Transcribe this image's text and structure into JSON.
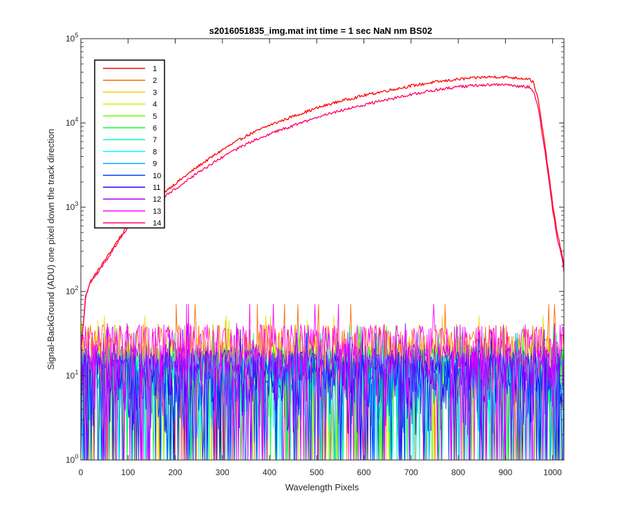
{
  "chart_data": {
    "type": "line",
    "title": "s2016051835_img.mat int time = 1 sec  NaN nm BS02",
    "xlabel": "Wavelength Pixels",
    "ylabel": "Signal-BackGround (ADU) one pixel down the track direction",
    "xlim": [
      0,
      1024
    ],
    "ylim": [
      1,
      100000
    ],
    "yscale": "log",
    "grid": false,
    "legend_position": "top-left",
    "x_ticks": [
      0,
      100,
      200,
      300,
      400,
      500,
      600,
      700,
      800,
      900,
      1000
    ],
    "y_ticks": [
      {
        "value": 1,
        "base": "10",
        "exp": "0"
      },
      {
        "value": 10,
        "base": "10",
        "exp": "1"
      },
      {
        "value": 100,
        "base": "10",
        "exp": "2"
      },
      {
        "value": 1000,
        "base": "10",
        "exp": "3"
      },
      {
        "value": 10000,
        "base": "10",
        "exp": "4"
      },
      {
        "value": 100000,
        "base": "10",
        "exp": "5"
      }
    ],
    "signal_profile_x": [
      0,
      5,
      10,
      20,
      40,
      60,
      80,
      100,
      130,
      160,
      200,
      250,
      300,
      350,
      400,
      450,
      500,
      550,
      600,
      650,
      700,
      750,
      800,
      850,
      880,
      900,
      930,
      950,
      960,
      970,
      980,
      990,
      1000,
      1010,
      1020,
      1024
    ],
    "series": [
      {
        "name": "1",
        "color": "#ff0000",
        "kind": "signal",
        "values": [
          20,
          40,
          90,
          130,
          190,
          280,
          420,
          600,
          900,
          1300,
          1900,
          3100,
          4800,
          7000,
          9400,
          12000,
          15000,
          18200,
          21200,
          24300,
          27500,
          30500,
          33000,
          34800,
          35300,
          35000,
          34000,
          33500,
          30000,
          18000,
          7500,
          3000,
          1100,
          480,
          280,
          200
        ]
      },
      {
        "name": "2",
        "color": "#ff6a00",
        "kind": "noise",
        "level": 22
      },
      {
        "name": "3",
        "color": "#ffcc00",
        "kind": "noise",
        "level": 16
      },
      {
        "name": "4",
        "color": "#c8f000",
        "kind": "noise",
        "level": 14
      },
      {
        "name": "5",
        "color": "#66ff00",
        "kind": "noise",
        "level": 12
      },
      {
        "name": "6",
        "color": "#00ff40",
        "kind": "noise",
        "level": 12
      },
      {
        "name": "7",
        "color": "#00ffaa",
        "kind": "noise",
        "level": 10
      },
      {
        "name": "8",
        "color": "#00ffff",
        "kind": "noise",
        "level": 10
      },
      {
        "name": "9",
        "color": "#00aaff",
        "kind": "noise",
        "level": 10
      },
      {
        "name": "10",
        "color": "#0040ff",
        "kind": "noise",
        "level": 10
      },
      {
        "name": "11",
        "color": "#2a00ff",
        "kind": "noise",
        "level": 11
      },
      {
        "name": "12",
        "color": "#aa00ff",
        "kind": "noise",
        "level": 13
      },
      {
        "name": "13",
        "color": "#ff00ff",
        "kind": "noise",
        "level": 22
      },
      {
        "name": "14",
        "color": "#ff0066",
        "kind": "signal",
        "values": [
          20,
          40,
          85,
          125,
          180,
          265,
          395,
          560,
          830,
          1150,
          1650,
          2600,
          3900,
          5600,
          7400,
          9300,
          11600,
          14000,
          16400,
          19000,
          21900,
          24500,
          26900,
          28200,
          28700,
          28300,
          27200,
          26700,
          23500,
          14500,
          6300,
          2600,
          950,
          420,
          250,
          170
        ]
      }
    ]
  }
}
